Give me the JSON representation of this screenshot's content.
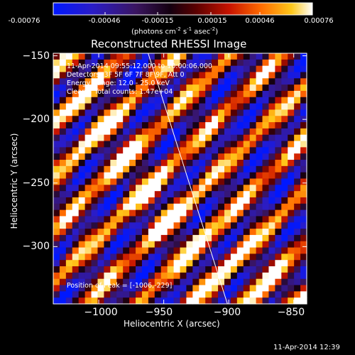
{
  "colorbar": {
    "ticks": [
      "-0.00076",
      "-0.00046",
      "-0.00015",
      "0.00015",
      "0.00046",
      "0.00076"
    ],
    "units_main": "(photons cm",
    "units_exp1": "-2",
    "units_s": " s",
    "units_exp2": "-1",
    "units_asec": " asec",
    "units_exp3": "-2",
    "units_close": ")"
  },
  "chart_data": {
    "type": "heatmap",
    "title": "Reconstructed RHESSI Image",
    "xlabel": "Heliocentric X (arcsec)",
    "ylabel": "Heliocentric Y (arcsec)",
    "xlim": [
      -1035,
      -840
    ],
    "ylim": [
      -345,
      -148
    ],
    "xticks": [
      -1000,
      -950,
      -900,
      -850
    ],
    "yticks": [
      -150,
      -200,
      -250,
      -300
    ],
    "xtick_labels": [
      "−1000",
      "−950",
      "−900",
      "−850"
    ],
    "ytick_labels": [
      "−150",
      "−200",
      "−250",
      "−300"
    ],
    "colormap": "blue-purple-black-red-orange-yellow-white",
    "value_range": [
      -0.00076,
      0.00076
    ],
    "limb_line": {
      "x1": -962,
      "y1": -148,
      "x2": -901,
      "y2": -345
    },
    "annotations": [
      "11-Apr-2014 09:55:12.000 to 10:00:06.000",
      "Detectors: 3F 5F 6F 7F 8F 9F, Att 0",
      "Energy Range: 12.0 - 25.0 keV",
      "Clean    Total counts: 1.47e+04"
    ],
    "peak_label": "Position of Peak = [-1006,-229]",
    "timestamp": "11-Apr-2014 12:39"
  }
}
